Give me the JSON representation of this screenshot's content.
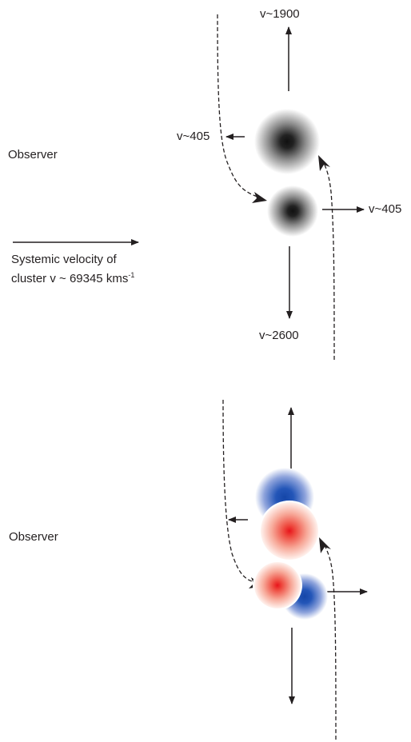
{
  "top_panel": {
    "observer": "Observer",
    "velocity_up": "v~1900",
    "velocity_left": "v~405",
    "velocity_right": "v~405",
    "velocity_down": "v~2600",
    "systemic_line1": "Systemic velocity of",
    "systemic_line2_prefix": "cluster v ~ 69345 kms",
    "systemic_line2_sup": "-1"
  },
  "bottom_panel": {
    "observer": "Observer"
  },
  "colors": {
    "ink": "#231f20",
    "gray_core": "#1a1a1a",
    "red_core": "#e8141b",
    "blue_core": "#1d4fb0"
  }
}
